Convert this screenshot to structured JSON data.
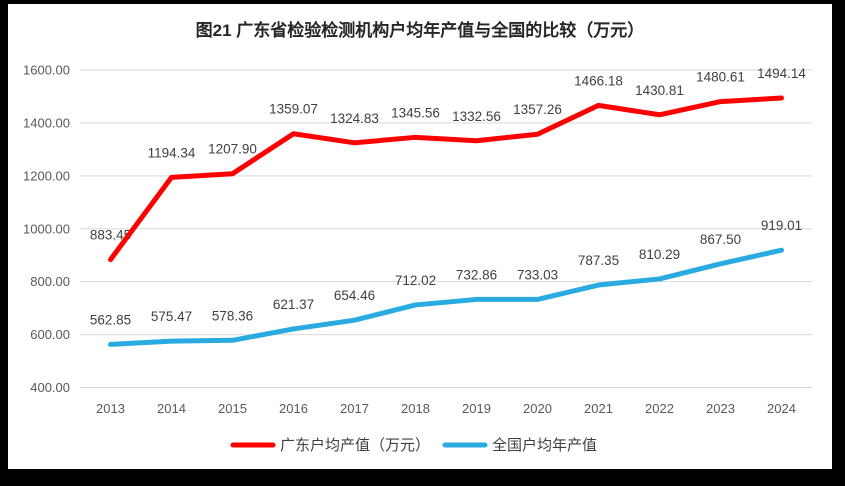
{
  "chart_data": {
    "type": "line",
    "title": "图21  广东省检验检测机构户均年产值与全国的比较（万元）",
    "categories": [
      "2013",
      "2014",
      "2015",
      "2016",
      "2017",
      "2018",
      "2019",
      "2020",
      "2021",
      "2022",
      "2023",
      "2024"
    ],
    "series": [
      {
        "name": "广东户均产值（万元）",
        "color": "#ff0000",
        "values": [
          883.45,
          1194.34,
          1207.9,
          1359.07,
          1324.83,
          1345.56,
          1332.56,
          1357.26,
          1466.18,
          1430.81,
          1480.61,
          1494.14
        ],
        "labels": [
          "883.45",
          "1194.34",
          "1207.90",
          "1359.07",
          "1324.83",
          "1345.56",
          "1332.56",
          "1357.26",
          "1466.18",
          "1430.81",
          "1480.61",
          "1494.14"
        ]
      },
      {
        "name": "全国户均年产值",
        "color": "#29abe2",
        "values": [
          562.85,
          575.47,
          578.36,
          621.37,
          654.46,
          712.02,
          732.86,
          733.03,
          787.35,
          810.29,
          867.5,
          919.01
        ],
        "labels": [
          "562.85",
          "575.47",
          "578.36",
          "621.37",
          "654.46",
          "712.02",
          "732.86",
          "733.03",
          "787.35",
          "810.29",
          "867.50",
          "919.01"
        ]
      }
    ],
    "ylim": [
      400,
      1600
    ],
    "ytick_values": [
      400,
      600,
      800,
      1000,
      1200,
      1400,
      1600
    ],
    "ytick_labels": [
      "400.00",
      "600.00",
      "800.00",
      "1000.00",
      "1200.00",
      "1400.00",
      "1600.00"
    ],
    "grid": true,
    "data_labels": true,
    "legend_position": "bottom"
  },
  "colors": {
    "frame_bg": "#000000",
    "panel_bg": "#ffffff",
    "gridline": "#d9d9d9",
    "axis_text": "#595959",
    "data_label_text": "#404040",
    "title_text": "#262626",
    "legend_text": "#404040"
  }
}
